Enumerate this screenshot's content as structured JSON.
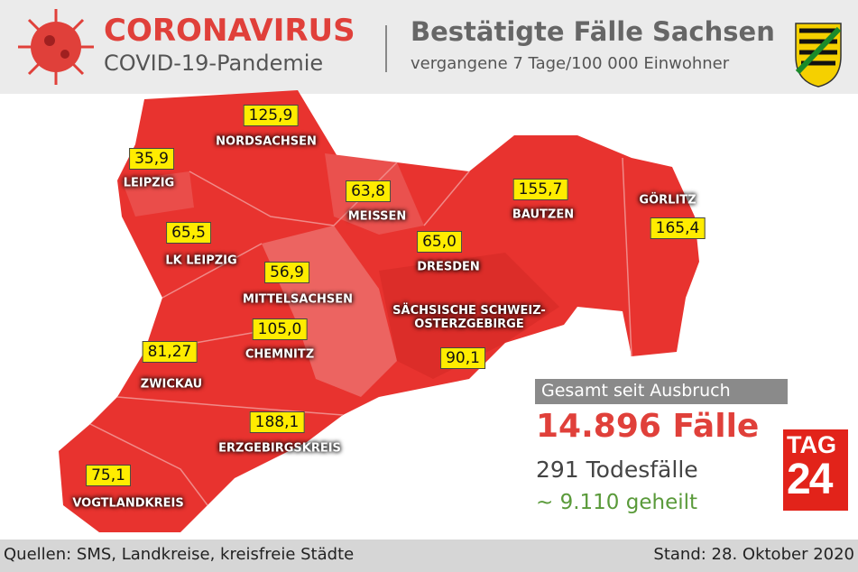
{
  "header": {
    "title": "CORONAVIRUS",
    "subtitle": "COVID-19-Pandemie",
    "heading": "Bestätigte Fälle Sachsen",
    "subheading": "vergangene 7 Tage/100 000 Einwohner"
  },
  "regions": [
    {
      "name": "NORDSACHSEN",
      "value": "125,9"
    },
    {
      "name": "LEIPZIG",
      "value": "35,9"
    },
    {
      "name": "MEISSEN",
      "value": "63,8"
    },
    {
      "name": "BAUTZEN",
      "value": "155,7"
    },
    {
      "name": "GÖRLITZ",
      "value": "165,4"
    },
    {
      "name": "LK LEIPZIG",
      "value": "65,5"
    },
    {
      "name": "DRESDEN",
      "value": "65,0"
    },
    {
      "name": "MITTELSACHSEN",
      "value": "56,9"
    },
    {
      "name": "SÄCHSISCHE SCHWEIZ-OSTERZGEBIRGE",
      "value": "90,1"
    },
    {
      "name": "CHEMNITZ",
      "value": "105,0"
    },
    {
      "name": "ZWICKAU",
      "value": "81,27"
    },
    {
      "name": "ERZGEBIRGSKREIS",
      "value": "188,1"
    },
    {
      "name": "VOGTLANDKREIS",
      "value": "75,1"
    }
  ],
  "summary": {
    "label": "Gesamt seit Ausbruch",
    "cases": "14.896 Fälle",
    "deaths": "291 Todesfälle",
    "recovered": "~ 9.110 geheilt"
  },
  "logo": {
    "line1": "TAG",
    "line2": "24"
  },
  "footer": {
    "source": "Quellen: SMS, Landkreise, kreisfreie Städte",
    "date": "Stand: 28. Oktober 2020"
  }
}
